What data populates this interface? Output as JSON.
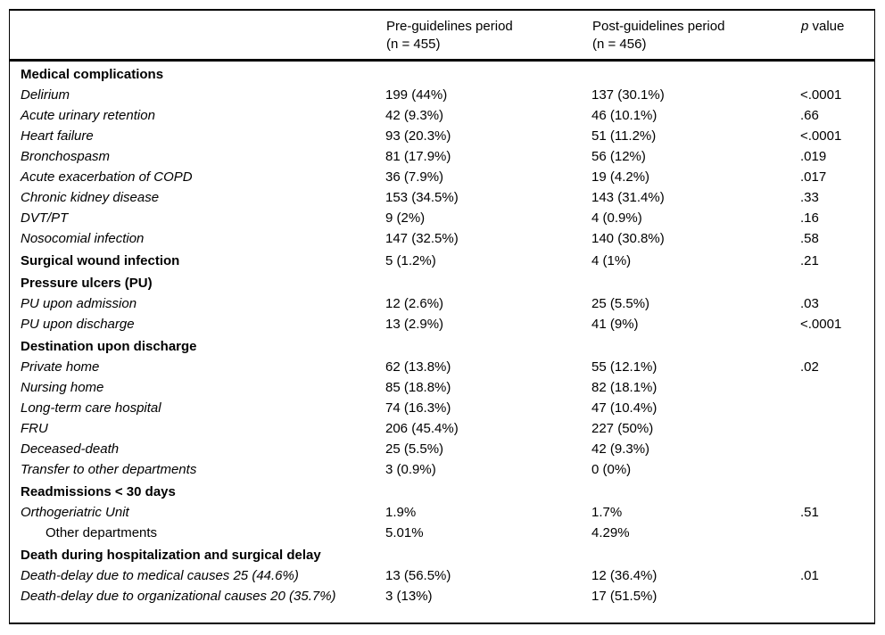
{
  "table": {
    "header": {
      "col_label": "",
      "pre": {
        "line1": "Pre-guidelines period",
        "line2": "(n = 455)"
      },
      "post": {
        "line1": "Post-guidelines period",
        "line2": "(n = 456)"
      },
      "p": {
        "italic_part": "p",
        "rest_part": " value"
      }
    },
    "rows": [
      {
        "type": "section",
        "label": "Medical complications",
        "pre": "",
        "post": "",
        "p": ""
      },
      {
        "type": "item",
        "label": "Delirium",
        "pre": "199 (44%)",
        "post": "137 (30.1%)",
        "p": "<.0001"
      },
      {
        "type": "item",
        "label": "Acute urinary retention",
        "pre": "42 (9.3%)",
        "post": "46 (10.1%)",
        "p": ".66"
      },
      {
        "type": "item",
        "label": "Heart failure",
        "pre": "93 (20.3%)",
        "post": "51 (11.2%)",
        "p": "<.0001"
      },
      {
        "type": "item",
        "label": "Bronchospasm",
        "pre": "81 (17.9%)",
        "post": "56 (12%)",
        "p": ".019"
      },
      {
        "type": "item",
        "label": "Acute exacerbation of COPD",
        "pre": "36 (7.9%)",
        "post": "19 (4.2%)",
        "p": ".017"
      },
      {
        "type": "item",
        "label": "Chronic kidney disease",
        "pre": "153 (34.5%)",
        "post": "143 (31.4%)",
        "p": ".33"
      },
      {
        "type": "item",
        "label": "DVT/PT",
        "pre": "9 (2%)",
        "post": "4 (0.9%)",
        "p": ".16"
      },
      {
        "type": "item",
        "label": "Nosocomial infection",
        "pre": "147 (32.5%)",
        "post": "140 (30.8%)",
        "p": ".58"
      },
      {
        "type": "section-data",
        "label": "Surgical wound infection",
        "pre": "5 (1.2%)",
        "post": "4 (1%)",
        "p": ".21"
      },
      {
        "type": "section",
        "label": "Pressure ulcers (PU)",
        "pre": "",
        "post": "",
        "p": ""
      },
      {
        "type": "item",
        "label": "PU upon admission",
        "pre": "12 (2.6%)",
        "post": "25 (5.5%)",
        "p": ".03"
      },
      {
        "type": "item",
        "label": "PU upon discharge",
        "pre": "13 (2.9%)",
        "post": "41 (9%)",
        "p": "<.0001"
      },
      {
        "type": "section",
        "label": "Destination upon discharge",
        "pre": "",
        "post": "",
        "p": ""
      },
      {
        "type": "item",
        "label": "Private home",
        "pre": "62 (13.8%)",
        "post": "55 (12.1%)",
        "p": ".02"
      },
      {
        "type": "item",
        "label": "Nursing home",
        "pre": "85 (18.8%)",
        "post": "82 (18.1%)",
        "p": ""
      },
      {
        "type": "item",
        "label": "Long-term care hospital",
        "pre": "74 (16.3%)",
        "post": "47 (10.4%)",
        "p": ""
      },
      {
        "type": "item",
        "label": "FRU",
        "pre": "206 (45.4%)",
        "post": "227 (50%)",
        "p": ""
      },
      {
        "type": "item",
        "label": "Deceased-death",
        "pre": "25 (5.5%)",
        "post": "42 (9.3%)",
        "p": ""
      },
      {
        "type": "item",
        "label": "Transfer to other departments",
        "pre": "3 (0.9%)",
        "post": "0 (0%)",
        "p": ""
      },
      {
        "type": "section",
        "label": "Readmissions < 30 days",
        "pre": "",
        "post": "",
        "p": ""
      },
      {
        "type": "item",
        "label": "Orthogeriatric Unit",
        "pre": "1.9%",
        "post": "1.7%",
        "p": ".51"
      },
      {
        "type": "item-plain-indent",
        "label": "Other departments",
        "pre": "5.01%",
        "post": "4.29%",
        "p": ""
      },
      {
        "type": "section",
        "label": "Death during hospitalization and surgical delay",
        "pre": "",
        "post": "",
        "p": ""
      },
      {
        "type": "item",
        "label": "Death-delay due to medical causes 25 (44.6%)",
        "pre": "13 (56.5%)",
        "post": "12 (36.4%)",
        "p": ".01"
      },
      {
        "type": "item",
        "label": "Death-delay due to organizational causes 20 (35.7%)",
        "pre": "3 (13%)",
        "post": "17 (51.5%)",
        "p": ""
      }
    ]
  },
  "colors": {
    "border": "#000000",
    "text": "#000000",
    "background": "#ffffff"
  }
}
